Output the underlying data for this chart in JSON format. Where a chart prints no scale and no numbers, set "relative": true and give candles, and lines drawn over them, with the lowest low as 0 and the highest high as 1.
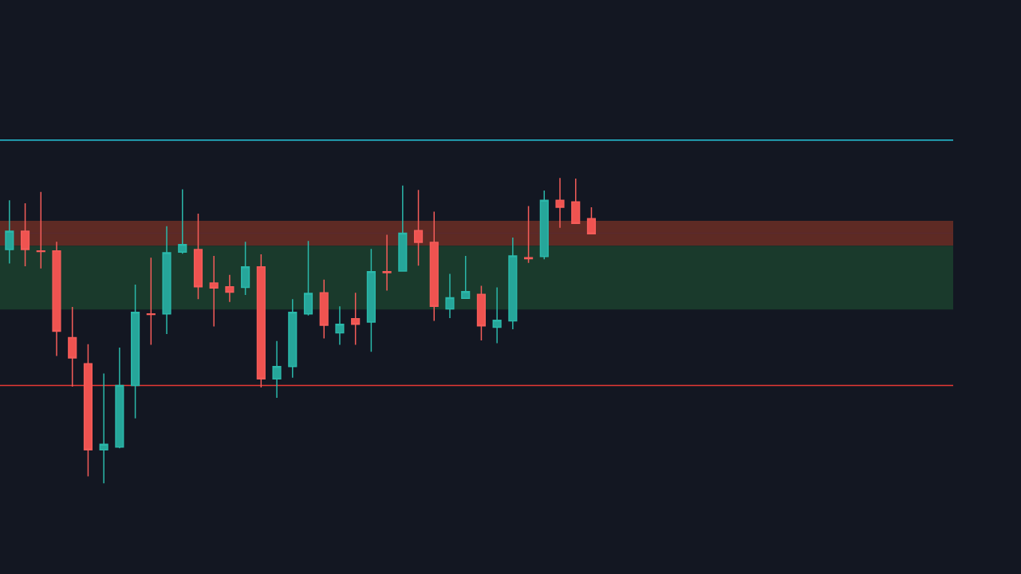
{
  "chart_data": {
    "type": "candlestick",
    "relative": true,
    "categories": [
      null,
      null,
      null,
      null,
      null,
      null,
      null,
      null,
      null,
      null,
      null,
      null,
      null,
      null,
      null,
      null,
      null,
      null,
      null,
      null,
      null,
      null,
      null,
      null,
      null,
      null,
      null,
      null,
      null,
      null,
      null,
      null,
      null,
      null,
      null,
      null,
      null,
      null
    ],
    "ohlc": [
      [
        0.766,
        0.927,
        0.72,
        0.826
      ],
      [
        0.826,
        0.917,
        0.711,
        0.766
      ],
      [
        0.761,
        0.954,
        0.704,
        0.759
      ],
      [
        0.761,
        0.791,
        0.417,
        0.498
      ],
      [
        0.477,
        0.578,
        0.317,
        0.411
      ],
      [
        0.392,
        0.456,
        0.023,
        0.11
      ],
      [
        0.11,
        0.36,
        0,
        0.128
      ],
      [
        0.119,
        0.445,
        0.115,
        0.321
      ],
      [
        0.321,
        0.651,
        0.213,
        0.56
      ],
      [
        0.555,
        0.739,
        0.454,
        0.553
      ],
      [
        0.555,
        0.842,
        0.489,
        0.755
      ],
      [
        0.757,
        0.963,
        0.752,
        0.782
      ],
      [
        0.766,
        0.883,
        0.603,
        0.644
      ],
      [
        0.656,
        0.745,
        0.514,
        0.64
      ],
      [
        0.644,
        0.683,
        0.594,
        0.626
      ],
      [
        0.642,
        0.791,
        0.617,
        0.709
      ],
      [
        0.709,
        0.75,
        0.314,
        0.342
      ],
      [
        0.342,
        0.466,
        0.28,
        0.383
      ],
      [
        0.383,
        0.603,
        0.346,
        0.56
      ],
      [
        0.555,
        0.794,
        0.55,
        0.622
      ],
      [
        0.624,
        0.667,
        0.475,
        0.518
      ],
      [
        0.493,
        0.58,
        0.454,
        0.521
      ],
      [
        0.539,
        0.624,
        0.454,
        0.521
      ],
      [
        0.528,
        0.768,
        0.431,
        0.693
      ],
      [
        0.693,
        0.814,
        0.631,
        0.69
      ],
      [
        0.695,
        0.975,
        0.693,
        0.819
      ],
      [
        0.828,
        0.961,
        0.713,
        0.789
      ],
      [
        0.789,
        0.89,
        0.532,
        0.58
      ],
      [
        0.571,
        0.686,
        0.541,
        0.608
      ],
      [
        0.606,
        0.745,
        0.606,
        0.628
      ],
      [
        0.619,
        0.647,
        0.468,
        0.516
      ],
      [
        0.511,
        0.642,
        0.459,
        0.534
      ],
      [
        0.532,
        0.805,
        0.505,
        0.745
      ],
      [
        0.739,
        0.908,
        0.722,
        0.736
      ],
      [
        0.743,
        0.959,
        0.734,
        0.927
      ],
      [
        0.927,
        1,
        0.837,
        0.904
      ],
      [
        0.922,
        0.998,
        0.851,
        0.851
      ],
      [
        0.867,
        0.904,
        0.817,
        0.817
      ]
    ],
    "ref_lines": [
      {
        "axis": "y",
        "value": 1.124,
        "color": "#26c6da"
      },
      {
        "axis": "y",
        "value": 0.819,
        "color": "#5a2a2e"
      },
      {
        "axis": "y",
        "value": 0.321,
        "color": "#e53935"
      }
    ],
    "bands": [
      {
        "axis": "y",
        "from": 0.778,
        "to": 0.86,
        "color": "#5e2a24"
      },
      {
        "axis": "y",
        "from": 0.569,
        "to": 0.778,
        "color": "#1a3a2c"
      }
    ],
    "grid": false
  }
}
